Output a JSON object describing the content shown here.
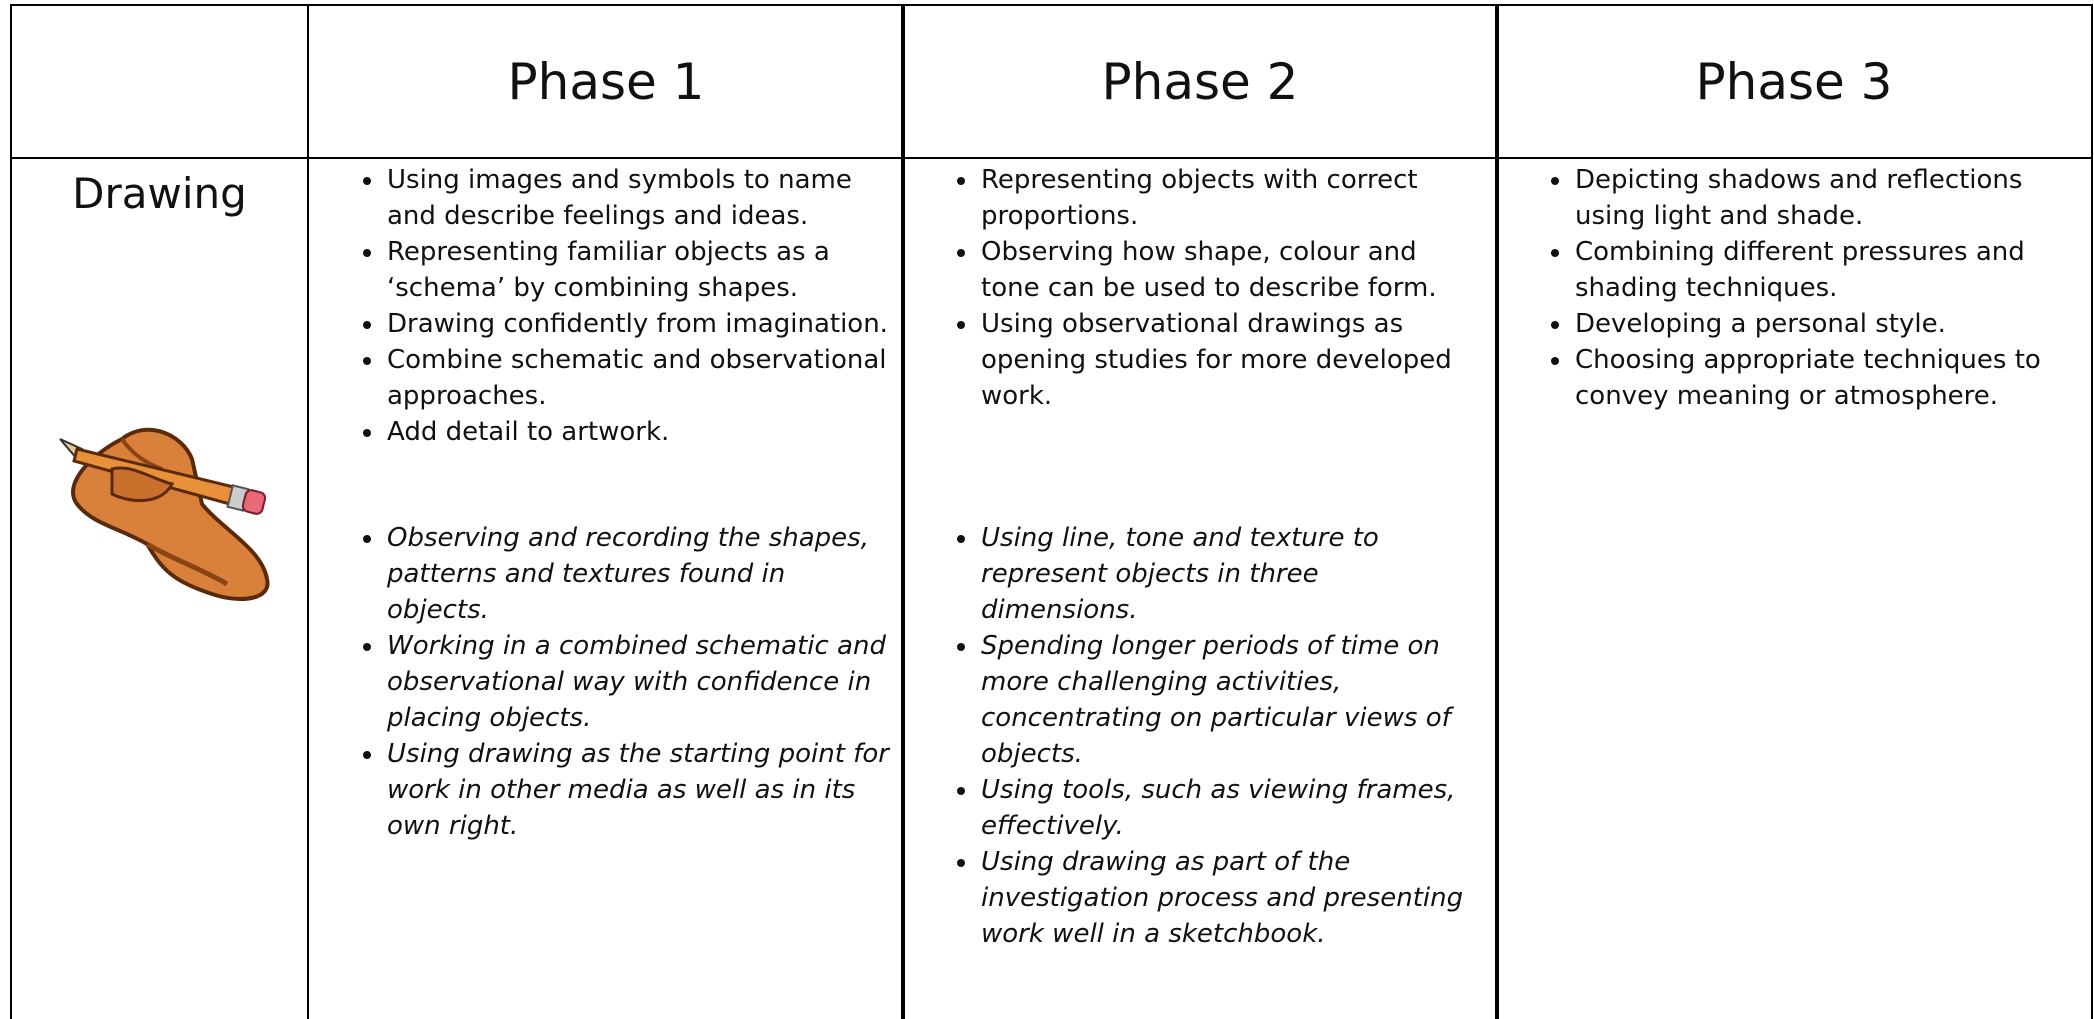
{
  "table": {
    "header": [
      "Phase 1",
      "Phase 2",
      "Phase 3"
    ],
    "rows": [
      {
        "label": "Drawing",
        "cells": [
          {
            "skills": [
              "Using images and symbols to name and describe feelings and ideas.",
              "Representing familiar objects as a ‘schema’ by combining shapes.",
              "Drawing confidently from imagination.",
              "Combine schematic and observational approaches.",
              "Add detail to artwork."
            ],
            "extended": [
              "Observing and recording the shapes, patterns and textures found in objects.",
              "Working in a combined schematic and observational way with confidence in placing objects.",
              "Using drawing as the starting point for work in other media as well as in its own right."
            ]
          },
          {
            "skills": [
              "Representing objects with correct proportions.",
              "Observing how shape, colour and tone can be used to describe form.",
              "Using observational drawings as opening studies for more developed work."
            ],
            "extended": [
              "Using line, tone and texture to represent objects in three dimensions.",
              "Spending longer periods of time on more challenging activities, concentrating on particular views of objects.",
              "Using tools, such as viewing frames, effectively.",
              "Using drawing as part of the investigation process and presenting work well in a sketchbook."
            ]
          },
          {
            "skills": [
              "Depicting shadows and reflections using light and shade.",
              "Combining different pressures and shading techniques.",
              "Developing a personal style.",
              "Choosing appropriate techniques to convey meaning or atmosphere."
            ]
          }
        ]
      }
    ]
  }
}
